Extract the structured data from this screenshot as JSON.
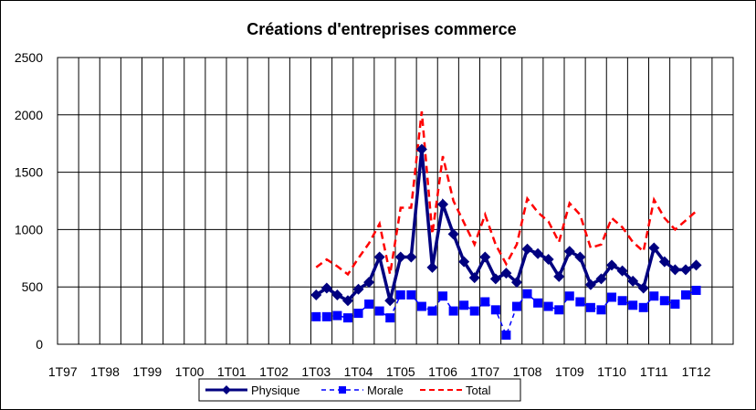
{
  "chart_data": {
    "type": "line",
    "title": "Créations d'entreprises commerce",
    "xlabel": "",
    "ylabel": "",
    "ylim": [
      0,
      2500
    ],
    "yticks": [
      "0",
      "500",
      "1000",
      "1500",
      "2000",
      "2500"
    ],
    "xtick_labels": [
      "1T97",
      "1T98",
      "1T99",
      "1T00",
      "1T01",
      "1T02",
      "1T03",
      "1T04",
      "1T05",
      "1T06",
      "1T07",
      "1T08",
      "1T09",
      "1T10",
      "1T11",
      "1T12"
    ],
    "grid": true,
    "legend_position": "bottom",
    "first_data_quarter": "1T03",
    "series": [
      {
        "name": "Physique",
        "color": "#000080",
        "style": "solid-diamond",
        "values": [
          430,
          490,
          430,
          380,
          480,
          540,
          760,
          380,
          760,
          760,
          1700,
          670,
          1220,
          960,
          720,
          580,
          760,
          570,
          620,
          540,
          830,
          790,
          740,
          590,
          810,
          760,
          520,
          570,
          690,
          640,
          550,
          490,
          840,
          720,
          650,
          650,
          690
        ]
      },
      {
        "name": "Morale",
        "color": "#0000ff",
        "style": "dashed-square",
        "values": [
          240,
          240,
          250,
          230,
          270,
          350,
          290,
          230,
          430,
          430,
          330,
          290,
          420,
          290,
          340,
          290,
          370,
          300,
          80,
          330,
          440,
          360,
          330,
          300,
          420,
          370,
          320,
          300,
          410,
          380,
          340,
          320,
          420,
          380,
          350,
          430,
          470
        ]
      },
      {
        "name": "Total",
        "color": "#ff0000",
        "style": "dashed",
        "values": [
          670,
          740,
          680,
          610,
          750,
          880,
          1050,
          610,
          1190,
          1190,
          2030,
          960,
          1640,
          1250,
          1060,
          870,
          1130,
          870,
          700,
          870,
          1270,
          1150,
          1070,
          890,
          1230,
          1130,
          840,
          870,
          1100,
          1020,
          890,
          810,
          1260,
          1100,
          1000,
          1080,
          1160
        ]
      }
    ]
  }
}
